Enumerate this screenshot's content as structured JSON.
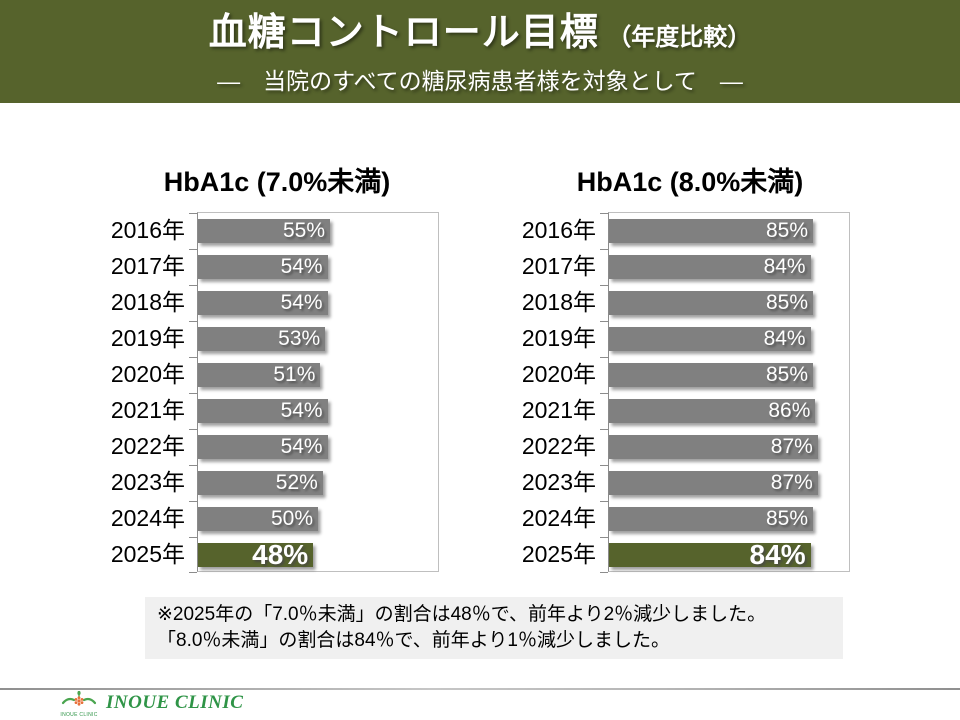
{
  "header": {
    "title": "血糖コントロール目標",
    "title_suffix": "（年度比較）",
    "subtitle": "―　当院のすべての糖尿病患者様を対象として　―",
    "bg_color": "#56632c"
  },
  "chart_data": [
    {
      "type": "bar",
      "orientation": "horizontal",
      "title": "HbA1c (7.0%未満)",
      "categories": [
        "2016年",
        "2017年",
        "2018年",
        "2019年",
        "2020年",
        "2021年",
        "2022年",
        "2023年",
        "2024年",
        "2025年"
      ],
      "values": [
        55,
        54,
        54,
        53,
        51,
        54,
        54,
        52,
        50,
        48
      ],
      "unit": "%",
      "xlim": [
        0,
        100
      ],
      "value_label_position": "inside-end",
      "bar_color": "#808080",
      "highlight_category": "2025年",
      "highlight_color": "#56632c",
      "grid": false,
      "legend": "none"
    },
    {
      "type": "bar",
      "orientation": "horizontal",
      "title": "HbA1c (8.0%未満)",
      "categories": [
        "2016年",
        "2017年",
        "2018年",
        "2019年",
        "2020年",
        "2021年",
        "2022年",
        "2023年",
        "2024年",
        "2025年"
      ],
      "values": [
        85,
        84,
        85,
        84,
        85,
        86,
        87,
        87,
        85,
        84
      ],
      "unit": "%",
      "xlim": [
        0,
        100
      ],
      "value_label_position": "inside-end",
      "bar_color": "#808080",
      "highlight_category": "2025年",
      "highlight_color": "#56632c",
      "grid": false,
      "legend": "none"
    }
  ],
  "note": {
    "line1": "※2025年の「7.0％未満」の割合は48％で、前年より2％減少しました。",
    "line2": "「8.0％未満」の割合は84％で、前年より1％減少しました。"
  },
  "footer": {
    "clinic_name": "INOUE CLINIC",
    "logo_caption": "INOUE CLINIC"
  },
  "colors": {
    "accent_olive": "#56632c",
    "bar_gray": "#808080",
    "note_bg": "#f0f0f0",
    "clinic_green": "#2f9447",
    "plot_border": "#bfbfbf",
    "axis_line": "#8c8c8c"
  }
}
